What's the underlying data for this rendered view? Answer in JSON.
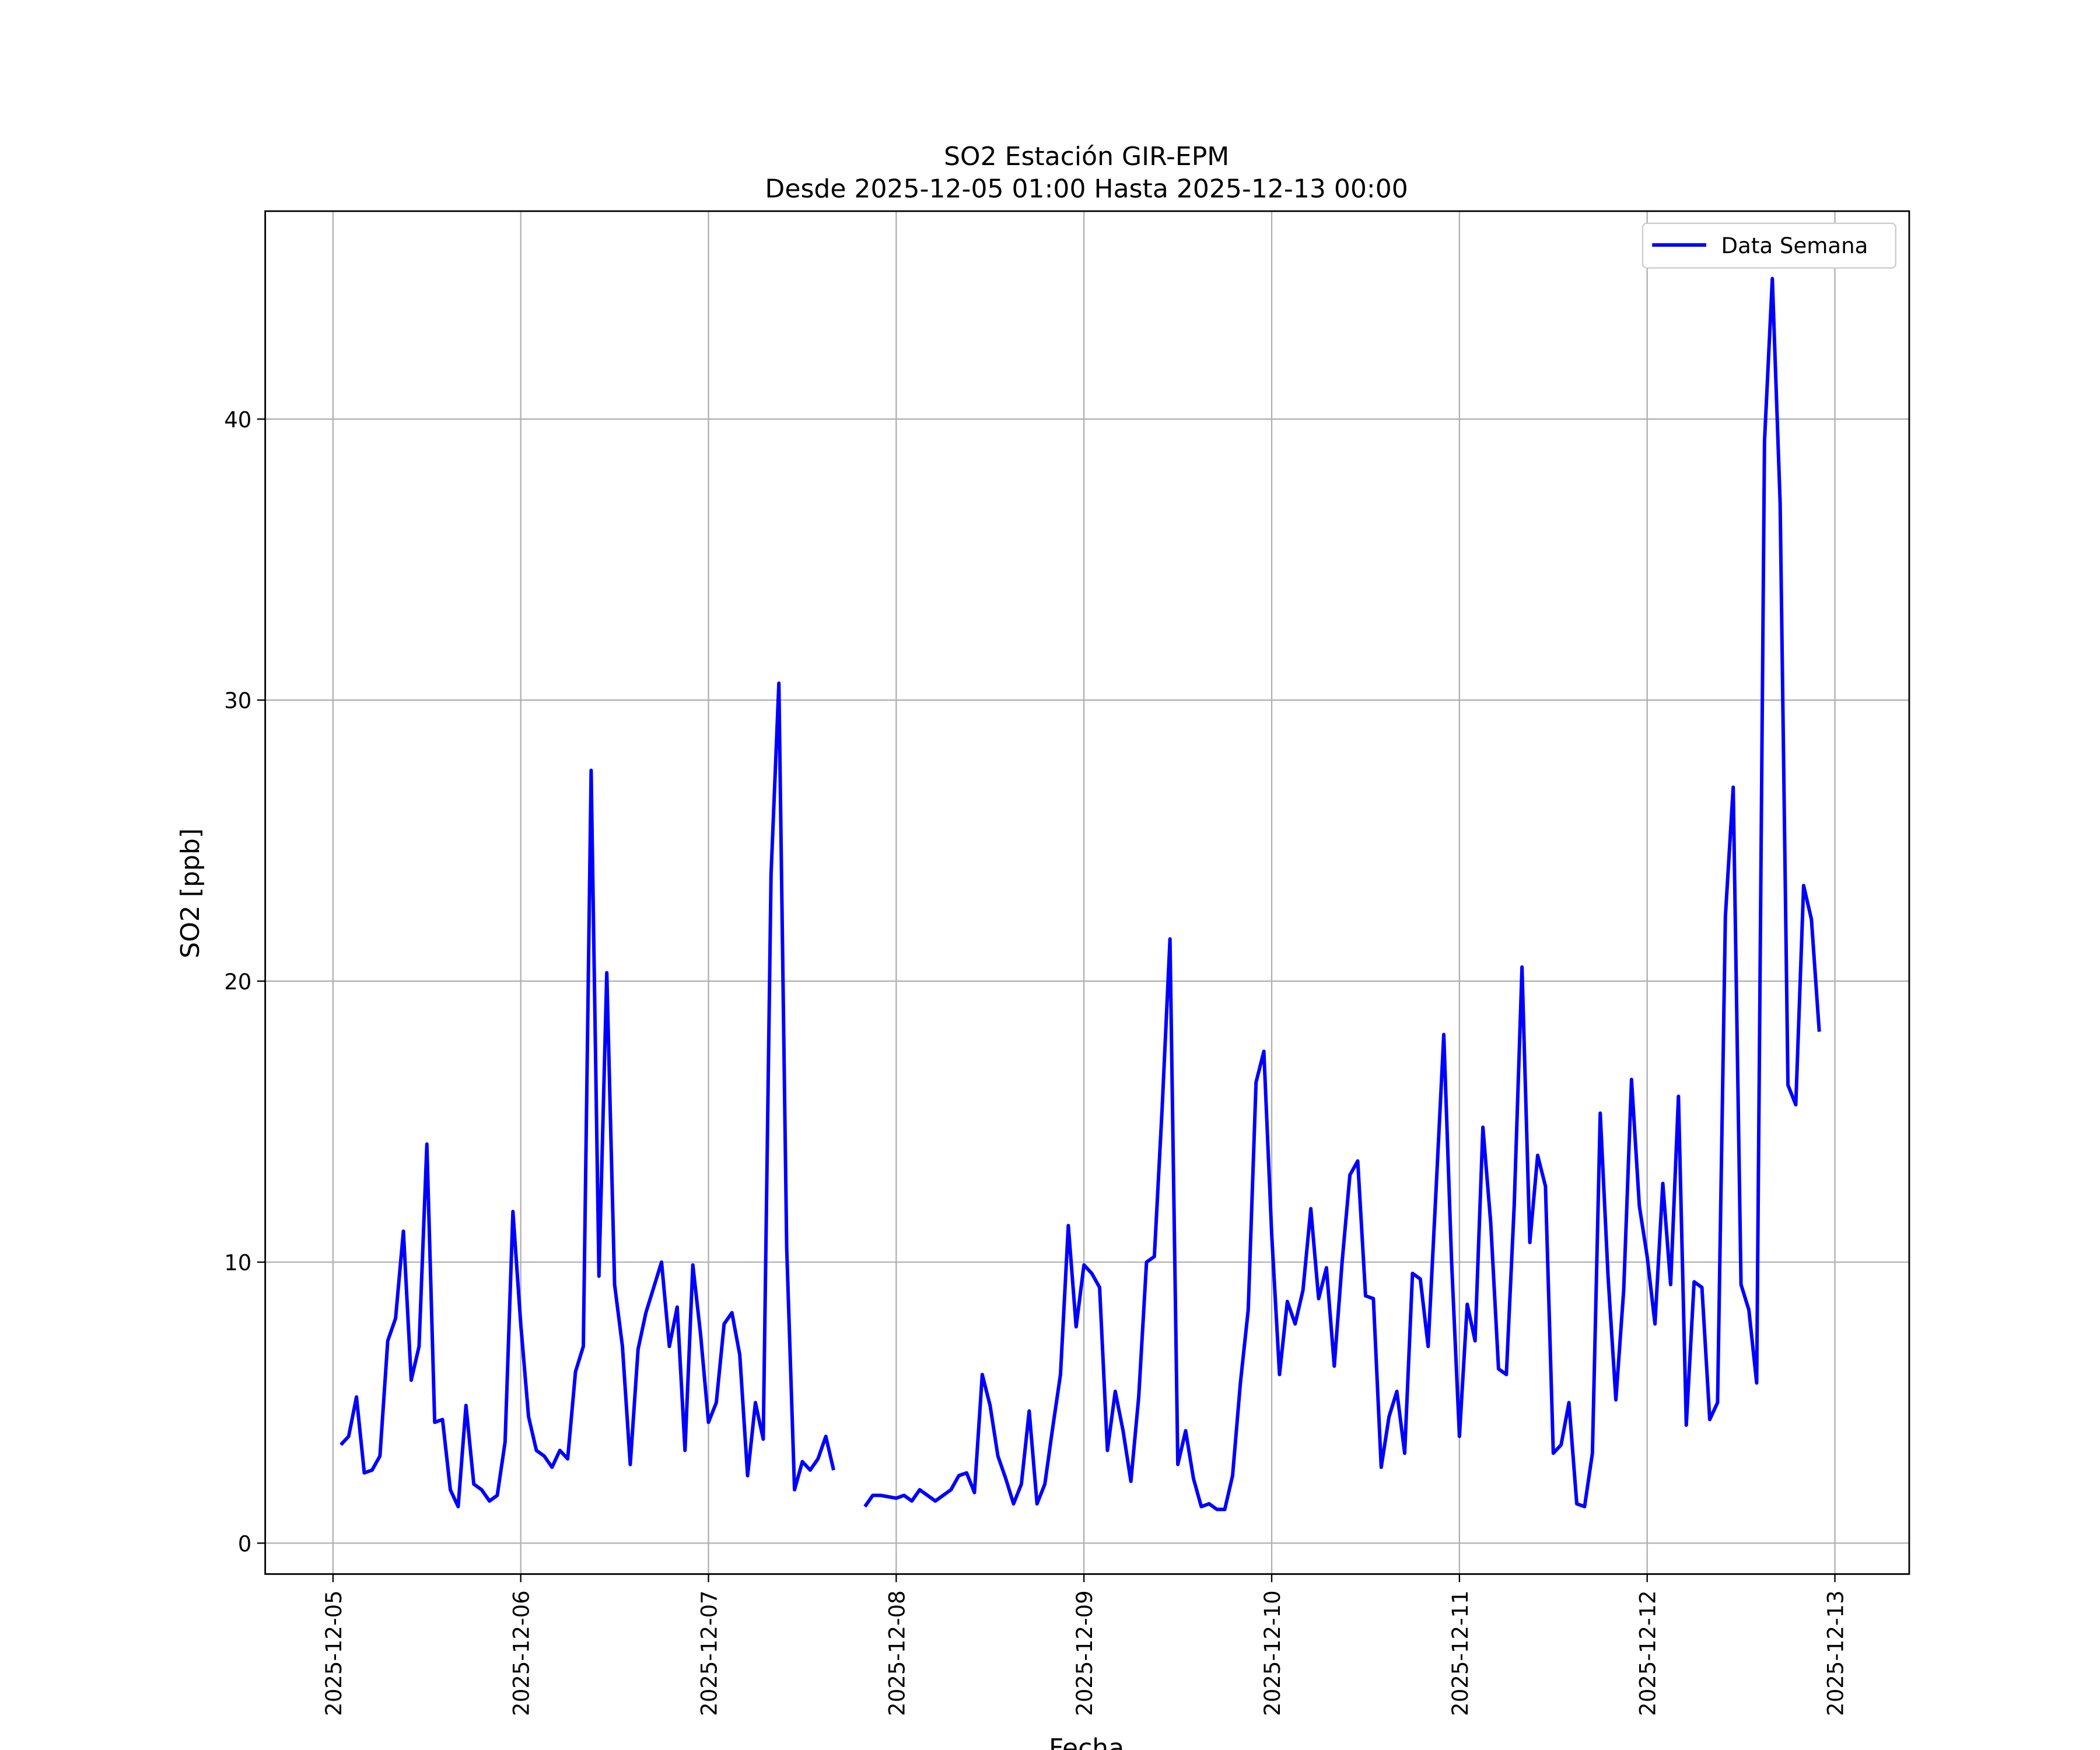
{
  "chart_data": {
    "type": "line",
    "title": "SO2 Estación GIR-EPM",
    "subtitle": "Desde 2025-12-05 01:00 Hasta 2025-12-13 00:00",
    "xlabel": "Fecha",
    "ylabel": "SO2 [ppb]",
    "x_start": "2025-12-05 01:00",
    "x_frequency": "1h",
    "x_ticks": [
      "2025-12-05",
      "2025-12-06",
      "2025-12-07",
      "2025-12-08",
      "2025-12-09",
      "2025-12-10",
      "2025-12-11",
      "2025-12-12",
      "2025-12-13"
    ],
    "y_ticks": [
      0,
      10,
      20,
      30,
      40
    ],
    "ylim": [
      -1.1,
      47.4
    ],
    "xlim": [
      "2025-12-04 15:20",
      "2025-12-13 09:30"
    ],
    "grid": true,
    "legend_position": "top-right",
    "series": [
      {
        "name": "Data Semana",
        "color": "#0000ff",
        "values": [
          3.5,
          3.8,
          5.2,
          2.5,
          2.6,
          3.1,
          7.2,
          8.0,
          11.1,
          5.8,
          7.0,
          14.2,
          4.3,
          4.4,
          1.9,
          1.3,
          4.9,
          2.1,
          1.9,
          1.5,
          1.7,
          3.6,
          11.8,
          7.8,
          4.5,
          3.3,
          3.1,
          2.7,
          3.3,
          3.0,
          6.1,
          7.0,
          27.5,
          9.5,
          20.3,
          9.2,
          7.0,
          2.8,
          6.9,
          8.2,
          9.1,
          10.0,
          7.0,
          8.4,
          3.3,
          9.9,
          7.4,
          4.3,
          5.0,
          7.8,
          8.2,
          6.7,
          2.4,
          5.0,
          3.7,
          23.8,
          30.6,
          10.5,
          1.9,
          2.9,
          2.6,
          3.0,
          3.8,
          2.6,
          null,
          null,
          null,
          1.3,
          1.7,
          1.7,
          1.65,
          1.6,
          1.7,
          1.5,
          1.9,
          1.7,
          1.5,
          1.7,
          1.9,
          2.4,
          2.5,
          1.8,
          6.0,
          4.9,
          3.1,
          2.3,
          1.4,
          2.1,
          4.7,
          1.4,
          2.1,
          4.1,
          6.0,
          11.3,
          7.7,
          9.9,
          9.6,
          9.1,
          3.3,
          5.4,
          4.0,
          2.2,
          5.2,
          10.0,
          10.2,
          15.5,
          21.5,
          2.8,
          4.0,
          2.3,
          1.3,
          1.4,
          1.2,
          1.2,
          2.4,
          5.7,
          8.3,
          16.4,
          17.5,
          11.0,
          6.0,
          8.6,
          7.8,
          9.0,
          11.9,
          8.7,
          9.8,
          6.3,
          10.0,
          13.1,
          13.6,
          8.8,
          8.7,
          2.7,
          4.5,
          5.4,
          3.2,
          9.6,
          9.4,
          7.0,
          12.5,
          18.1,
          10.0,
          3.8,
          8.5,
          7.2,
          14.8,
          11.4,
          6.2,
          6.0,
          12.0,
          20.5,
          10.7,
          13.8,
          12.7,
          3.2,
          3.5,
          5.0,
          1.4,
          1.3,
          3.2,
          15.3,
          9.5,
          5.1,
          9.0,
          16.5,
          12.0,
          10.2,
          7.8,
          12.8,
          9.2,
          15.9,
          4.2,
          9.3,
          9.1,
          4.4,
          5.0,
          22.3,
          26.9,
          9.2,
          8.3,
          5.7,
          39.2,
          45.0,
          37.0,
          16.3,
          15.6,
          23.4,
          22.2,
          18.2
        ]
      }
    ]
  }
}
